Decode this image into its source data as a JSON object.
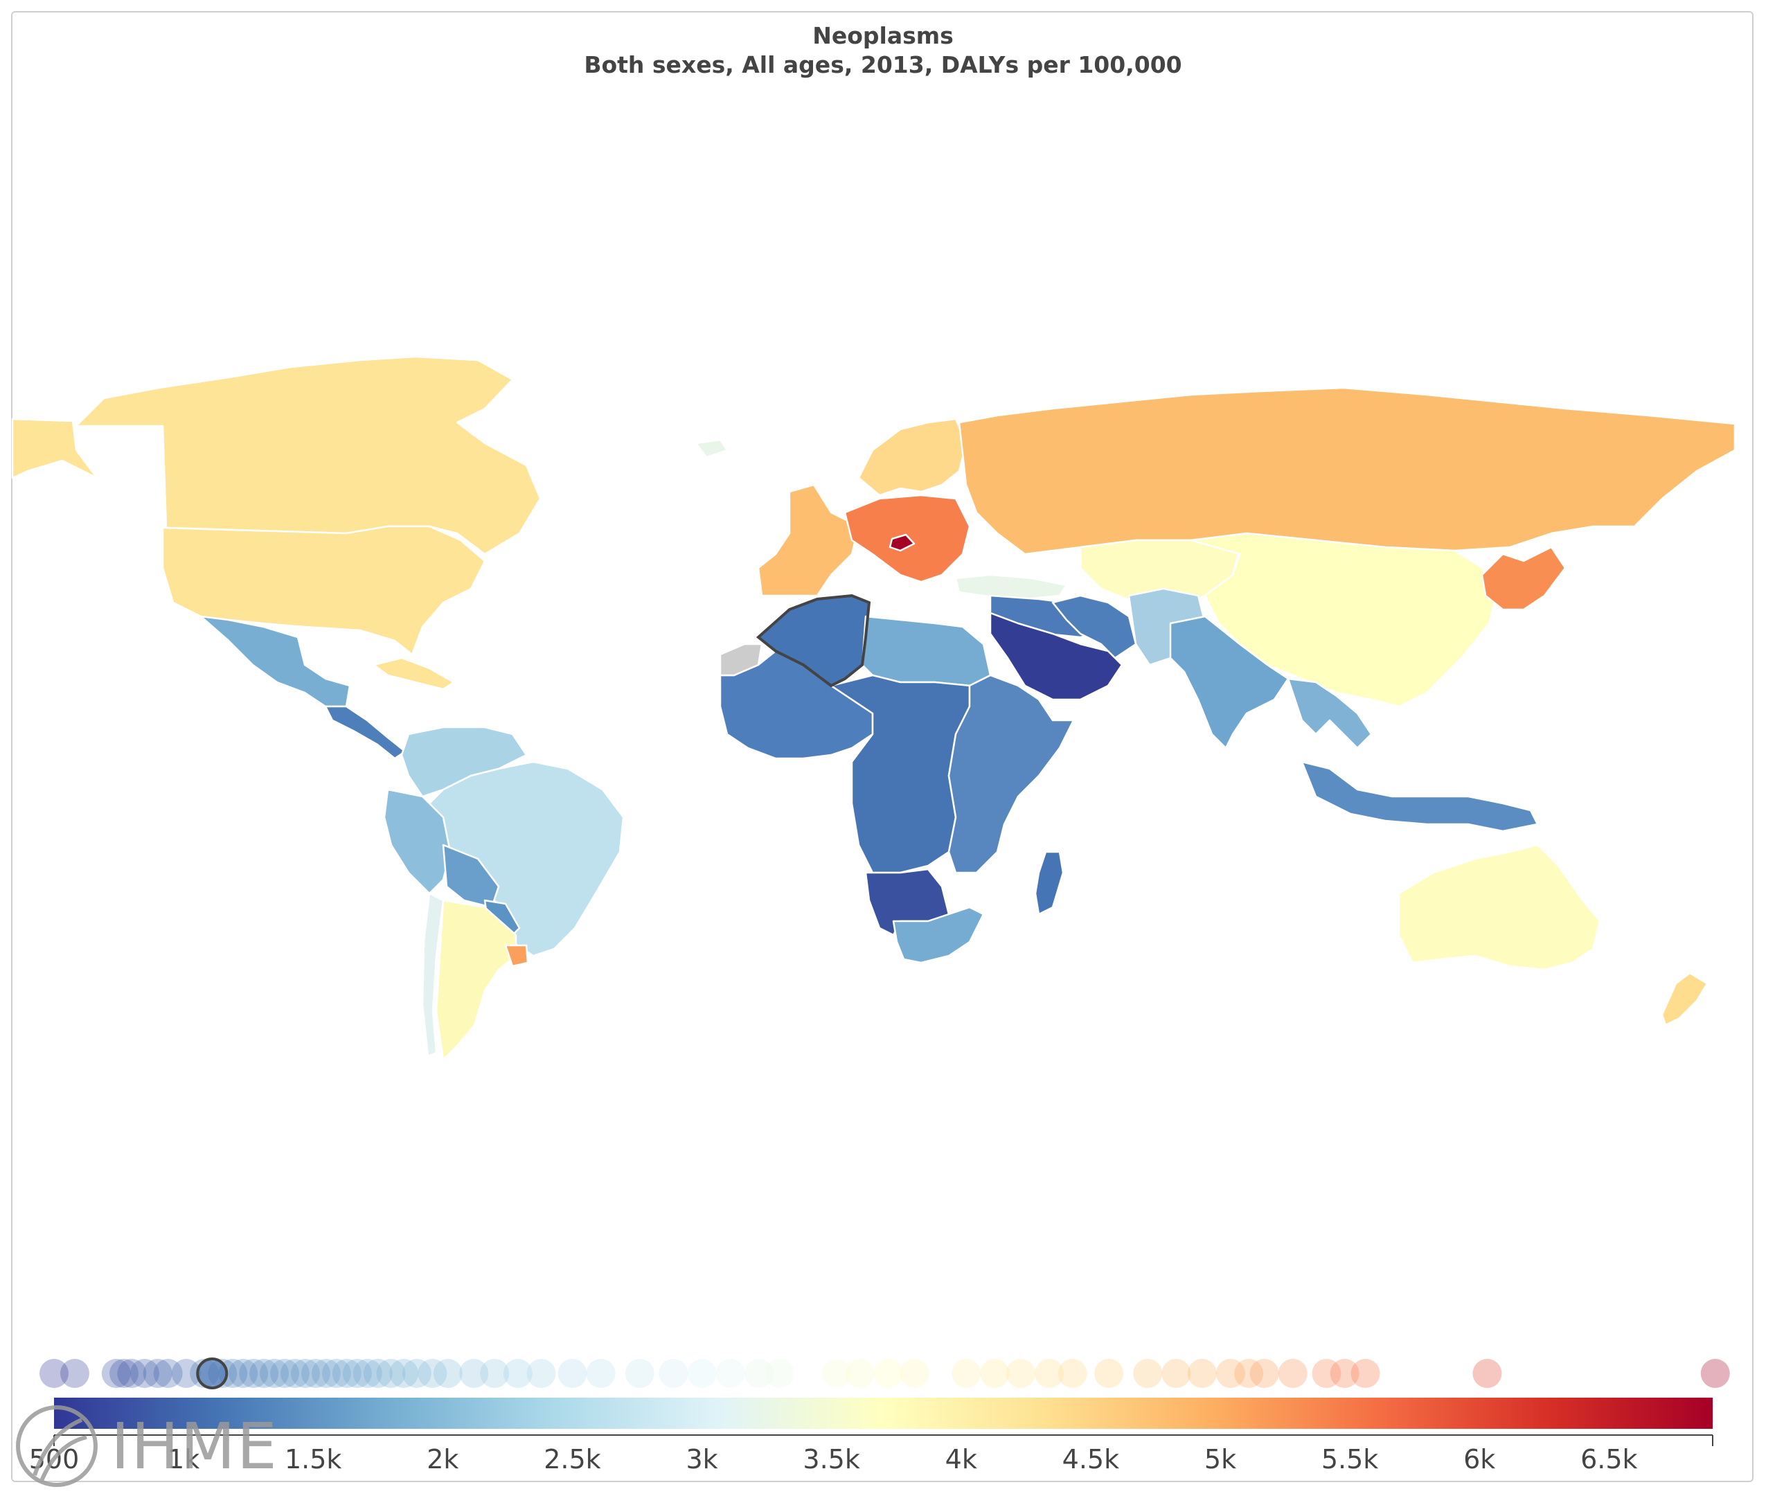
{
  "title": {
    "line1": "Neoplasms",
    "line2": "Both sexes, All ages, 2013, DALYs per 100,000"
  },
  "legend": {
    "min": 500,
    "max": 6900,
    "ticks": [
      {
        "value": 500,
        "label": "500"
      },
      {
        "value": 1000,
        "label": "1k"
      },
      {
        "value": 1500,
        "label": "1.5k"
      },
      {
        "value": 2000,
        "label": "2k"
      },
      {
        "value": 2500,
        "label": "2.5k"
      },
      {
        "value": 3000,
        "label": "3k"
      },
      {
        "value": 3500,
        "label": "3.5k"
      },
      {
        "value": 4000,
        "label": "4k"
      },
      {
        "value": 4500,
        "label": "4.5k"
      },
      {
        "value": 5000,
        "label": "5k"
      },
      {
        "value": 5500,
        "label": "5.5k"
      },
      {
        "value": 6000,
        "label": "6k"
      },
      {
        "value": 6500,
        "label": "6.5k"
      }
    ],
    "color_stops": [
      "#313695",
      "#4575b4",
      "#74add1",
      "#abd9e9",
      "#e0f3f8",
      "#ffffbf",
      "#fee090",
      "#fdae61",
      "#f46d43",
      "#d73027",
      "#a50026"
    ],
    "selected_value": 1110,
    "distribution": [
      500,
      580,
      740,
      770,
      800,
      850,
      900,
      940,
      1010,
      1080,
      1110,
      1150,
      1190,
      1230,
      1270,
      1310,
      1350,
      1390,
      1430,
      1470,
      1510,
      1550,
      1590,
      1630,
      1670,
      1710,
      1750,
      1800,
      1850,
      1900,
      1960,
      2020,
      2120,
      2200,
      2290,
      2380,
      2500,
      2610,
      2760,
      2890,
      3000,
      3110,
      3220,
      3300,
      3520,
      3610,
      3720,
      3820,
      4020,
      4130,
      4230,
      4340,
      4430,
      4570,
      4720,
      4830,
      4930,
      5040,
      5110,
      5170,
      5280,
      5410,
      5480,
      5560,
      6030,
      6910
    ]
  },
  "regions": [
    {
      "name": "Canada",
      "value": 3900,
      "color": "#fee497"
    },
    {
      "name": "United States",
      "value": 3950,
      "color": "#fee497"
    },
    {
      "name": "Alaska",
      "value": 3950,
      "color": "#fee497"
    },
    {
      "name": "Mexico",
      "value": 1750,
      "color": "#79aed3"
    },
    {
      "name": "Central America",
      "value": 1350,
      "color": "#4f7fbb"
    },
    {
      "name": "Caribbean",
      "value": 4000,
      "color": "#fee497"
    },
    {
      "name": "Greenland",
      "value": null,
      "color": "#ffffff"
    },
    {
      "name": "Iceland",
      "value": 3100,
      "color": "#e8f5e8"
    },
    {
      "name": "Colombia and Venezuela",
      "value": 2300,
      "color": "#abd3e6"
    },
    {
      "name": "Brazil",
      "value": 2550,
      "color": "#bfe1ee"
    },
    {
      "name": "Peru",
      "value": 1900,
      "color": "#8dbfdc"
    },
    {
      "name": "Bolivia",
      "value": 1600,
      "color": "#6a9fcc"
    },
    {
      "name": "Paraguay",
      "value": 1500,
      "color": "#5c93c5"
    },
    {
      "name": "Argentina",
      "value": 3650,
      "color": "#fdf9b9"
    },
    {
      "name": "Chile",
      "value": 3050,
      "color": "#e3f2f0"
    },
    {
      "name": "Uruguay",
      "value": 4950,
      "color": "#fba05c"
    },
    {
      "name": "Western Europe",
      "value": 4600,
      "color": "#fdbf6f"
    },
    {
      "name": "Scandinavia",
      "value": 4150,
      "color": "#fed98b"
    },
    {
      "name": "Central Europe",
      "value": 5200,
      "color": "#f67f4b"
    },
    {
      "name": "Hungary",
      "value": 6910,
      "color": "#a50026"
    },
    {
      "name": "Russia",
      "value": 4650,
      "color": "#fdbd6e"
    },
    {
      "name": "Kazakhstan and Central Asia",
      "value": 3700,
      "color": "#fefcc0"
    },
    {
      "name": "Mongolia and China",
      "value": 3550,
      "color": "#ffffc0"
    },
    {
      "name": "Japan and Korea",
      "value": 5050,
      "color": "#f98e52"
    },
    {
      "name": "Turkey",
      "value": 3000,
      "color": "#e8f5e8"
    },
    {
      "name": "Middle East",
      "value": 1350,
      "color": "#4d7bb9"
    },
    {
      "name": "Saudi Arabia",
      "value": 600,
      "color": "#343d94"
    },
    {
      "name": "Iran",
      "value": 1300,
      "color": "#4f7fbb"
    },
    {
      "name": "Afghanistan and Pakistan",
      "value": 2200,
      "color": "#a6cde2"
    },
    {
      "name": "India",
      "value": 1700,
      "color": "#6ea6cf"
    },
    {
      "name": "Southeast Asia",
      "value": 1750,
      "color": "#7fb2d5"
    },
    {
      "name": "Indonesia",
      "value": 1400,
      "color": "#5b8dc3"
    },
    {
      "name": "Australia",
      "value": 3600,
      "color": "#fffcc0"
    },
    {
      "name": "New Zealand",
      "value": 4100,
      "color": "#fedd8e"
    },
    {
      "name": "Algeria",
      "value": 1110,
      "color": "#4575b4"
    },
    {
      "name": "North Africa",
      "value": 1700,
      "color": "#76abd2"
    },
    {
      "name": "West Africa",
      "value": 1350,
      "color": "#4e7ebb"
    },
    {
      "name": "Central Africa",
      "value": 1250,
      "color": "#4775b4"
    },
    {
      "name": "East Africa",
      "value": 1450,
      "color": "#5887c0"
    },
    {
      "name": "Madagascar",
      "value": 1250,
      "color": "#4575b4"
    },
    {
      "name": "Namibia and Botswana",
      "value": 800,
      "color": "#3a51a0"
    },
    {
      "name": "South Africa",
      "value": 1750,
      "color": "#76abd2"
    },
    {
      "name": "Western Sahara",
      "value": null,
      "color": "#cccccc"
    }
  ],
  "logo": {
    "text": "IHME"
  }
}
